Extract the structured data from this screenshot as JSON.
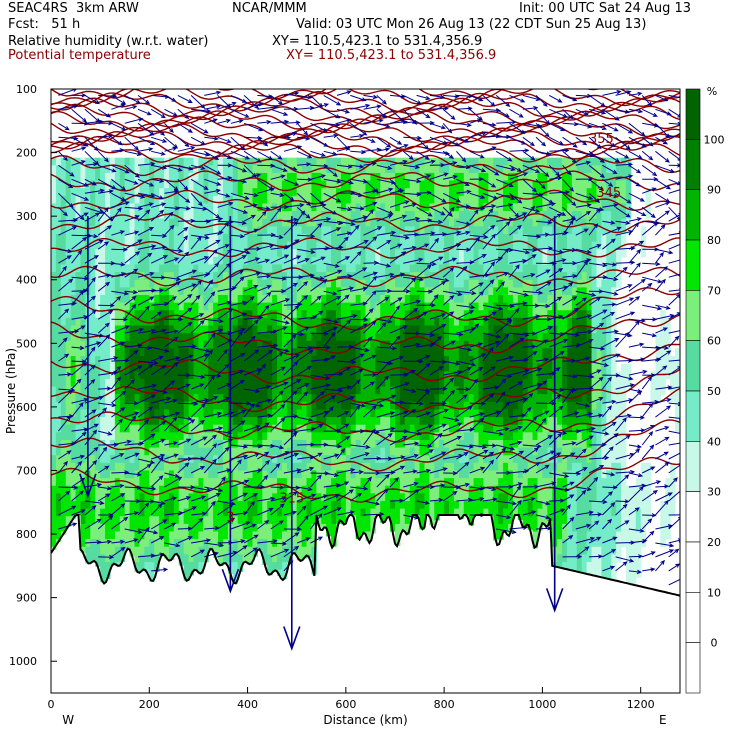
{
  "header": {
    "experiment": "SEAC4RS  3km ARW",
    "center": "NCAR/MMM",
    "init": "Init: 00 UTC Sat 24 Aug 13",
    "fcst": "Fcst:   51 h",
    "valid": "Valid: 03 UTC Mon 26 Aug 13 (22 CDT Sun 25 Aug 13)",
    "field1": "Relative humidity (w.r.t. water)",
    "field1_xy": "XY= 110.5,423.1 to 531.4,356.9",
    "field2": "Potential temperature",
    "field2_xy": "XY= 110.5,423.1 to 531.4,356.9"
  },
  "chart_data": {
    "type": "heatmap",
    "title": "Relative humidity (w.r.t. water)",
    "overlay": "Potential temperature",
    "xlabel": "Distance (km)",
    "ylabel": "Pressure (hPa)",
    "xlim": [
      0,
      1280
    ],
    "ylim": [
      1050,
      100
    ],
    "x_ticks": [
      "0",
      "200",
      "400",
      "600",
      "800",
      "1000",
      "1200"
    ],
    "y_ticks": [
      "100",
      "200",
      "300",
      "400",
      "500",
      "600",
      "700",
      "800",
      "900",
      "1000"
    ],
    "x_end_labels": {
      "left": "W",
      "right": "E"
    },
    "colorbar": {
      "unit": "%",
      "labels": [
        "100",
        "90",
        "80",
        "70",
        "60",
        "50",
        "40",
        "30",
        "20",
        "10",
        "0"
      ],
      "levels": [
        {
          "from": 100,
          "to": 105,
          "color": "#006400"
        },
        {
          "from": 90,
          "to": 100,
          "color": "#008000"
        },
        {
          "from": 80,
          "to": 90,
          "color": "#00b400"
        },
        {
          "from": 70,
          "to": 80,
          "color": "#00e600"
        },
        {
          "from": 60,
          "to": 70,
          "color": "#7cee7c"
        },
        {
          "from": 50,
          "to": 60,
          "color": "#56dba0"
        },
        {
          "from": 40,
          "to": 50,
          "color": "#74ecc8"
        },
        {
          "from": 30,
          "to": 40,
          "color": "#c7f8e8"
        },
        {
          "from": 20,
          "to": 30,
          "color": "#ffffff"
        },
        {
          "from": 10,
          "to": 20,
          "color": "#ffffff"
        },
        {
          "from": 0,
          "to": 10,
          "color": "#ffffff"
        },
        {
          "from": -5,
          "to": 0,
          "color": "#ffffff"
        }
      ]
    },
    "theta_contour_labels": [
      {
        "text": "355",
        "x": 1120,
        "p": 185
      },
      {
        "text": "345",
        "x": 1135,
        "p": 270
      },
      {
        "text": "315",
        "x": 490,
        "p": 750
      },
      {
        "text": "3",
        "x": 365,
        "p": 780
      }
    ],
    "theta_color": "#8b0000",
    "wind_color": "#00008b",
    "terrain_color": "#000000"
  }
}
